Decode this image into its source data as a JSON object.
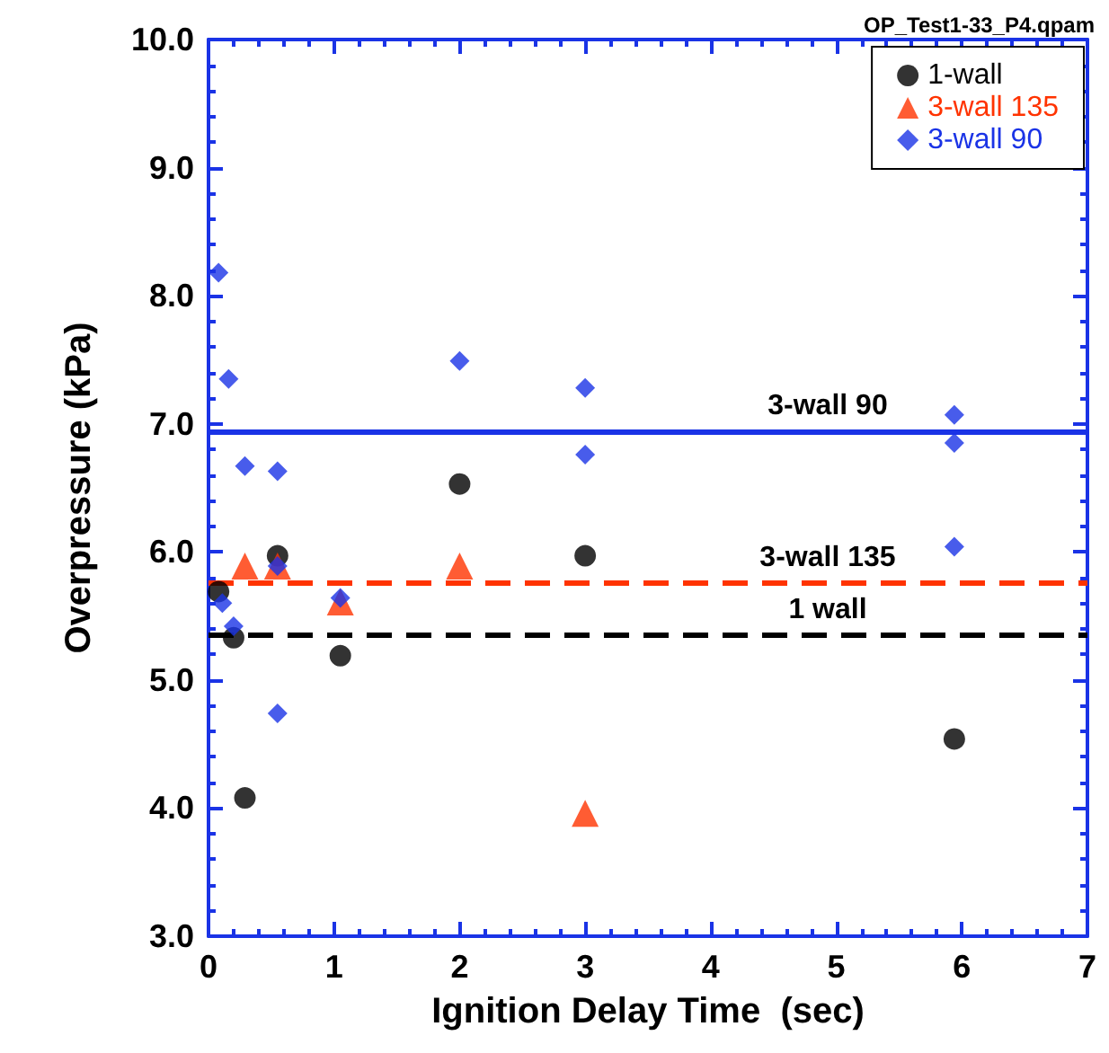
{
  "chart_data": {
    "type": "scatter",
    "xlabel": "Ignition Delay Time  (sec)",
    "ylabel": "Overpressure (kPa)",
    "annotations": [
      "OP_Test1-33_P4.qpam"
    ],
    "xlim": [
      0,
      7
    ],
    "xticks": [
      0,
      1,
      2,
      3,
      4,
      5,
      6,
      7
    ],
    "ylim": [
      3,
      10
    ],
    "yticks": [
      {
        "value": 3,
        "label": "3.0"
      },
      {
        "value": 4,
        "label": "4.0"
      },
      {
        "value": 5,
        "label": "5.0"
      },
      {
        "value": 6,
        "label": "6.0"
      },
      {
        "value": 7,
        "label": "7.0"
      },
      {
        "value": 8,
        "label": "8.0"
      },
      {
        "value": 9,
        "label": "9.0"
      },
      {
        "value": 10,
        "label": "10.0"
      }
    ],
    "grid": false,
    "legend": "top right",
    "series": [
      {
        "name": "1-wall",
        "color": "#000000",
        "marker": "circle",
        "x": [
          0.08,
          0.2,
          0.29,
          0.55,
          1.05,
          2.0,
          3.0,
          5.94
        ],
        "values": [
          5.69,
          5.33,
          4.08,
          5.97,
          5.19,
          6.53,
          5.97,
          4.54
        ]
      },
      {
        "name": "3-wall 135",
        "color": "#ff3300",
        "marker": "triangle",
        "x": [
          0.29,
          0.55,
          1.05,
          2.0,
          3.0
        ],
        "values": [
          5.89,
          5.89,
          5.61,
          5.89,
          3.96
        ]
      },
      {
        "name": "3-wall 90",
        "color": "#1a33e6",
        "marker": "diamond",
        "x": [
          0.08,
          0.16,
          0.29,
          0.55,
          0.55,
          0.11,
          0.2,
          0.55,
          1.05,
          2.0,
          3.0,
          3.0,
          5.94,
          5.94,
          5.94
        ],
        "values": [
          8.18,
          7.35,
          6.67,
          6.63,
          5.89,
          5.6,
          5.42,
          4.74,
          5.64,
          7.49,
          7.28,
          6.76,
          7.07,
          6.85,
          6.04
        ]
      }
    ],
    "ref_lines": [
      {
        "axis": "y",
        "value": 6.94,
        "label": "3-wall 90",
        "color": "#1a33e6",
        "line_style": "solid"
      },
      {
        "axis": "y",
        "value": 5.76,
        "label": "3-wall 135",
        "color": "#ff3300",
        "line_style": "dashed"
      },
      {
        "axis": "y",
        "value": 5.35,
        "label": "1 wall",
        "color": "#000000",
        "line_style": "dashed"
      }
    ]
  }
}
